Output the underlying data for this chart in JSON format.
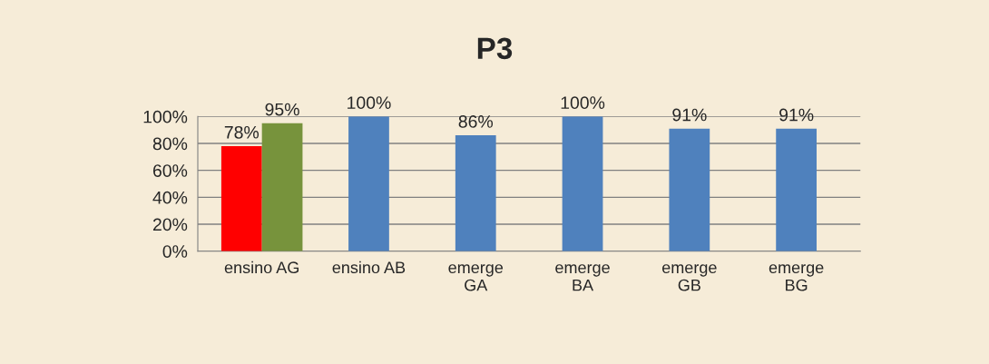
{
  "chart_data": {
    "type": "bar",
    "title": "P3",
    "categories": [
      "ensino AG",
      "ensino AB",
      "emerge\nGA",
      "emerge\nBA",
      "emerge\nGB",
      "emerge\nBG"
    ],
    "series": [
      {
        "colors": [
          "#ff0000",
          "#4f81bd",
          "#4f81bd",
          "#4f81bd",
          "#4f81bd",
          "#4f81bd"
        ],
        "values": [
          78,
          100,
          86,
          100,
          91,
          91
        ],
        "value_labels": [
          "78%",
          "100%",
          "86%",
          "100%",
          "91%",
          "91%"
        ]
      },
      {
        "color": "#77933c",
        "values": [
          95,
          null,
          null,
          null,
          null,
          null
        ],
        "value_labels": [
          "95%",
          null,
          null,
          null,
          null,
          null
        ]
      }
    ],
    "ylim": [
      0,
      100
    ],
    "yticks": [
      {
        "value": 0,
        "label": "0%"
      },
      {
        "value": 20,
        "label": "20%"
      },
      {
        "value": 40,
        "label": "40%"
      },
      {
        "value": 60,
        "label": "60%"
      },
      {
        "value": 80,
        "label": "80%"
      },
      {
        "value": 100,
        "label": "100%"
      }
    ],
    "grid": "y",
    "legend": false
  }
}
